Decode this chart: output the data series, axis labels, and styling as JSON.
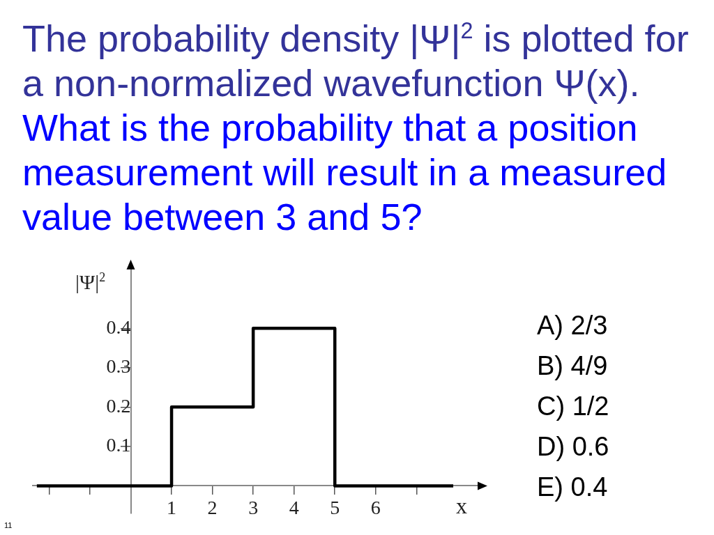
{
  "chart_data": {
    "type": "step",
    "title": "The probability density |Ψ|$^{2}$ is plotted for a non-normalized wavefunction Ψ(x).",
    "subtitle": "What is the probability that a position measurement will result in a measured value between 3 and 5?",
    "xlabel": "x",
    "ylabel": "|Ψ|$^{2}$",
    "x": [
      -2.3,
      1,
      3,
      5,
      7.9
    ],
    "series": [
      {
        "color": "#000000",
        "values": [
          0,
          0.2,
          0.4,
          0,
          0
        ]
      }
    ],
    "xlim": [
      -2.4,
      8.6
    ],
    "ylim": [
      -0.07,
      0.56
    ],
    "xticks": [
      {
        "value": -2,
        "label": null
      },
      {
        "value": -1,
        "label": null
      },
      1,
      2,
      3,
      4,
      5,
      6,
      {
        "value": 7,
        "label": null
      }
    ],
    "yticks": [
      0.1,
      0.2,
      0.3,
      0.4
    ],
    "grid": false,
    "legend": false,
    "marker": "none",
    "annotations": [
      "A) 2/3",
      "B) 4/9",
      "C) 1/2",
      "D) 0.6",
      "E) 0.4",
      "11"
    ]
  }
}
